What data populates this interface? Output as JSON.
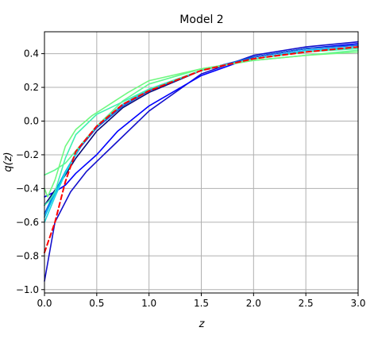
{
  "chart_data": {
    "type": "line",
    "title": "Model 2",
    "xlabel": "z",
    "ylabel": "q(z)",
    "xlim": [
      0,
      3
    ],
    "ylim": [
      -1.02,
      0.53
    ],
    "grid": true,
    "xticks": [
      0,
      0.5,
      1,
      1.5,
      2,
      2.5,
      3
    ],
    "xtick_labels": [
      "0.0",
      "0.5",
      "1.0",
      "1.5",
      "2.0",
      "2.5",
      "3.0"
    ],
    "yticks": [
      -1,
      -0.8,
      -0.6,
      -0.4,
      -0.2,
      0,
      0.2,
      0.4
    ],
    "ytick_labels": [
      "−1.0",
      "−0.8",
      "−0.6",
      "−0.4",
      "−0.2",
      "0.0",
      "0.2",
      "0.4"
    ],
    "series": [
      {
        "color": "#1410cc",
        "dashed": false,
        "x": [
          0,
          0.1,
          0.25,
          0.4,
          0.5,
          0.7,
          1,
          1.5,
          2,
          2.5,
          3
        ],
        "y": [
          -0.95,
          -0.6,
          -0.42,
          -0.3,
          -0.24,
          -0.12,
          0.06,
          0.28,
          0.39,
          0.44,
          0.47
        ]
      },
      {
        "color": "#0000ff",
        "dashed": false,
        "x": [
          0,
          0.1,
          0.2,
          0.3,
          0.5,
          0.7,
          1,
          1.5,
          2,
          2.5,
          3
        ],
        "y": [
          -0.45,
          -0.42,
          -0.38,
          -0.31,
          -0.2,
          -0.06,
          0.09,
          0.27,
          0.38,
          0.43,
          0.46
        ]
      },
      {
        "color": "#0a0a7a",
        "dashed": false,
        "x": [
          0,
          0.1,
          0.2,
          0.3,
          0.5,
          0.75,
          1,
          1.5,
          2,
          2.5,
          3
        ],
        "y": [
          -0.5,
          -0.41,
          -0.32,
          -0.22,
          -0.06,
          0.08,
          0.17,
          0.3,
          0.38,
          0.43,
          0.45
        ]
      },
      {
        "color": "#1060e0",
        "dashed": false,
        "x": [
          0,
          0.1,
          0.2,
          0.35,
          0.5,
          0.75,
          1,
          1.5,
          2,
          2.5,
          3
        ],
        "y": [
          -0.55,
          -0.42,
          -0.3,
          -0.15,
          -0.04,
          0.09,
          0.18,
          0.3,
          0.38,
          0.43,
          0.45
        ]
      },
      {
        "color": "#00b8f0",
        "dashed": false,
        "x": [
          0,
          0.1,
          0.2,
          0.35,
          0.5,
          0.75,
          1,
          1.5,
          2,
          2.5,
          3
        ],
        "y": [
          -0.57,
          -0.43,
          -0.3,
          -0.14,
          -0.03,
          0.1,
          0.19,
          0.3,
          0.37,
          0.42,
          0.44
        ]
      },
      {
        "color": "#20d8e0",
        "dashed": false,
        "x": [
          0,
          0.1,
          0.2,
          0.35,
          0.5,
          0.75,
          1,
          1.5,
          2,
          2.5,
          3
        ],
        "y": [
          -0.6,
          -0.45,
          -0.31,
          -0.14,
          -0.03,
          0.1,
          0.19,
          0.3,
          0.37,
          0.41,
          0.44
        ]
      },
      {
        "color": "#40f0b0",
        "dashed": false,
        "x": [
          0,
          0.05,
          0.1,
          0.2,
          0.3,
          0.5,
          0.7,
          1,
          1.5,
          2,
          2.5,
          3
        ],
        "y": [
          -0.5,
          -0.47,
          -0.42,
          -0.22,
          -0.08,
          0.04,
          0.1,
          0.19,
          0.3,
          0.37,
          0.41,
          0.43
        ]
      },
      {
        "color": "#60f890",
        "dashed": false,
        "x": [
          0,
          0.1,
          0.2,
          0.35,
          0.5,
          0.75,
          1,
          1.5,
          2,
          2.5,
          3
        ],
        "y": [
          -0.32,
          -0.29,
          -0.25,
          -0.14,
          -0.03,
          0.12,
          0.22,
          0.31,
          0.36,
          0.39,
          0.42
        ]
      },
      {
        "color": "#70f880",
        "dashed": false,
        "x": [
          0,
          0.03,
          0.1,
          0.2,
          0.3,
          0.45,
          0.6,
          0.8,
          1,
          1.5,
          2,
          2.5,
          3
        ],
        "y": [
          -0.4,
          -0.45,
          -0.35,
          -0.15,
          -0.05,
          0.03,
          0.09,
          0.17,
          0.24,
          0.31,
          0.36,
          0.39,
          0.41
        ]
      },
      {
        "color": "#ff0000",
        "dashed": true,
        "x": [
          0,
          0.1,
          0.2,
          0.3,
          0.5,
          0.75,
          1,
          1.5,
          2,
          2.5,
          3
        ],
        "y": [
          -0.78,
          -0.6,
          -0.36,
          -0.18,
          -0.03,
          0.1,
          0.18,
          0.3,
          0.37,
          0.41,
          0.44
        ]
      }
    ]
  }
}
